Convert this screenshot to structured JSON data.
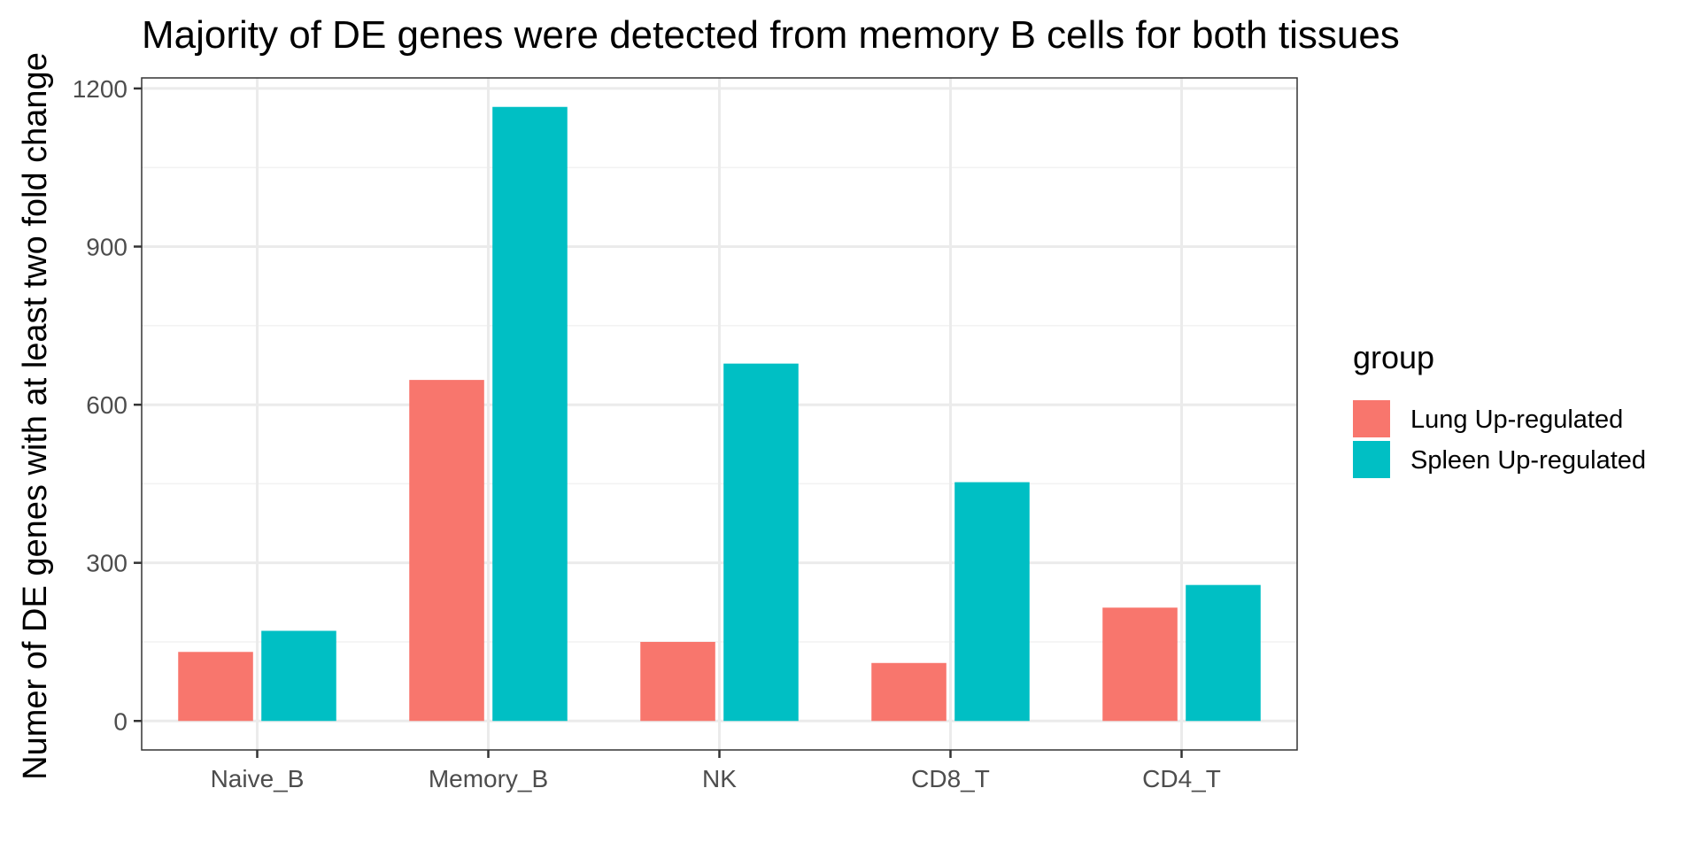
{
  "chart_data": {
    "type": "bar",
    "title": "Majority of DE genes were detected from memory B cells for both tissues",
    "xlabel": "",
    "ylabel": "Numer of DE genes with at least two fold change",
    "categories": [
      "Naive_B",
      "Memory_B",
      "NK",
      "CD8_T",
      "CD4_T"
    ],
    "series": [
      {
        "name": "Lung Up-regulated",
        "color": "#F8766D",
        "values": [
          131,
          647,
          150,
          110,
          215
        ]
      },
      {
        "name": "Spleen Up-regulated",
        "color": "#00BFC4",
        "values": [
          171,
          1165,
          678,
          453,
          258
        ]
      }
    ],
    "ylim": [
      -55,
      1220
    ],
    "yticks": [
      0,
      300,
      600,
      900,
      1200
    ],
    "y_minor_ticks": [
      150,
      450,
      750,
      1050
    ],
    "grid": true,
    "legend": {
      "title": "group",
      "position": "right"
    }
  }
}
